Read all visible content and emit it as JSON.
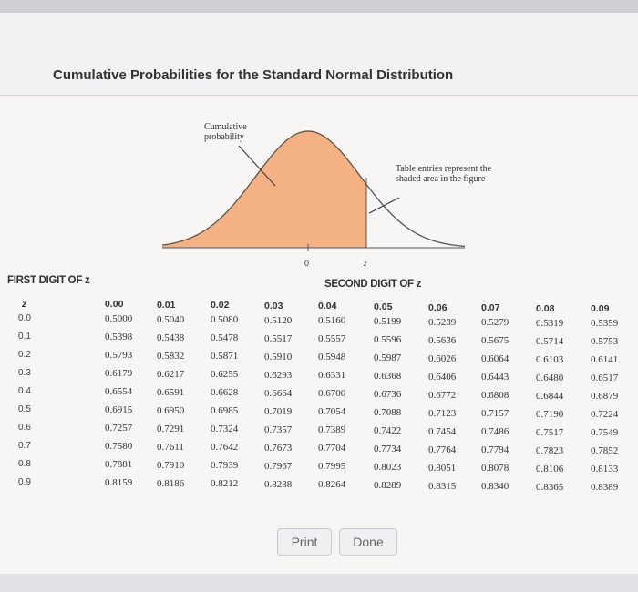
{
  "title": "Cumulative Probabilities for the Standard Normal Distribution",
  "figure": {
    "cumulative_label": "Cumulative probability",
    "table_entries_label": "Table entries represent the shaded area in the figure",
    "axis_zero": "0",
    "axis_z": "z",
    "fill_color": "#f4b183"
  },
  "table": {
    "first_digit_header": "FIRST DIGIT OF z",
    "second_digit_header": "SECOND DIGIT OF z",
    "z_header": "z",
    "columns": [
      "0.00",
      "0.01",
      "0.02",
      "0.03",
      "0.04",
      "0.05",
      "0.06",
      "0.07",
      "0.08",
      "0.09"
    ],
    "rows": [
      {
        "z": "0.0",
        "values": [
          "0.5000",
          "0.5040",
          "0.5080",
          "0.5120",
          "0.5160",
          "0.5199",
          "0.5239",
          "0.5279",
          "0.5319",
          "0.5359"
        ]
      },
      {
        "z": "0.1",
        "values": [
          "0.5398",
          "0.5438",
          "0.5478",
          "0.5517",
          "0.5557",
          "0.5596",
          "0.5636",
          "0.5675",
          "0.5714",
          "0.5753"
        ]
      },
      {
        "z": "0.2",
        "values": [
          "0.5793",
          "0.5832",
          "0.5871",
          "0.5910",
          "0.5948",
          "0.5987",
          "0.6026",
          "0.6064",
          "0.6103",
          "0.6141"
        ]
      },
      {
        "z": "0.3",
        "values": [
          "0.6179",
          "0.6217",
          "0.6255",
          "0.6293",
          "0.6331",
          "0.6368",
          "0.6406",
          "0.6443",
          "0.6480",
          "0.6517"
        ]
      },
      {
        "z": "0.4",
        "values": [
          "0.6554",
          "0.6591",
          "0.6628",
          "0.6664",
          "0.6700",
          "0.6736",
          "0.6772",
          "0.6808",
          "0.6844",
          "0.6879"
        ]
      },
      {
        "z": "0.5",
        "values": [
          "0.6915",
          "0.6950",
          "0.6985",
          "0.7019",
          "0.7054",
          "0.7088",
          "0.7123",
          "0.7157",
          "0.7190",
          "0.7224"
        ]
      },
      {
        "z": "0.6",
        "values": [
          "0.7257",
          "0.7291",
          "0.7324",
          "0.7357",
          "0.7389",
          "0.7422",
          "0.7454",
          "0.7486",
          "0.7517",
          "0.7549"
        ]
      },
      {
        "z": "0.7",
        "values": [
          "0.7580",
          "0.7611",
          "0.7642",
          "0.7673",
          "0.7704",
          "0.7734",
          "0.7764",
          "0.7794",
          "0.7823",
          "0.7852"
        ]
      },
      {
        "z": "0.8",
        "values": [
          "0.7881",
          "0.7910",
          "0.7939",
          "0.7967",
          "0.7995",
          "0.8023",
          "0.8051",
          "0.8078",
          "0.8106",
          "0.8133"
        ]
      },
      {
        "z": "0.9",
        "values": [
          "0.8159",
          "0.8186",
          "0.8212",
          "0.8238",
          "0.8264",
          "0.8289",
          "0.8315",
          "0.8340",
          "0.8365",
          "0.8389"
        ]
      }
    ]
  },
  "buttons": {
    "print": "Print",
    "done": "Done"
  }
}
